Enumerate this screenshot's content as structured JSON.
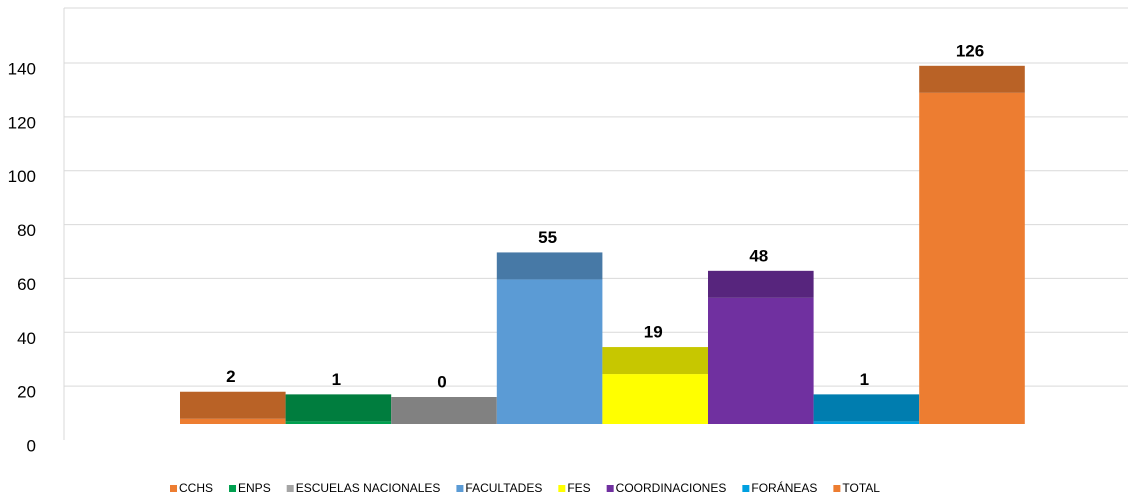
{
  "chart_data": {
    "type": "bar",
    "categories": [
      "CCHS",
      "ENPS",
      "ESCUELAS NACIONALES",
      "FACULTADES",
      "FES",
      "COORDINACIONES",
      "FORÁNEAS",
      "TOTAL"
    ],
    "values": [
      2,
      1,
      0,
      55,
      19,
      48,
      1,
      126
    ],
    "colors": [
      "#ed7d31",
      "#00a04f",
      "#a5a5a5",
      "#5b9bd5",
      "#ffff00",
      "#7030a0",
      "#00a0e0",
      "#ed7d31"
    ],
    "ylim": [
      0,
      140
    ],
    "yticks": [
      0,
      20,
      40,
      60,
      80,
      100,
      120,
      140
    ],
    "grid": true
  }
}
